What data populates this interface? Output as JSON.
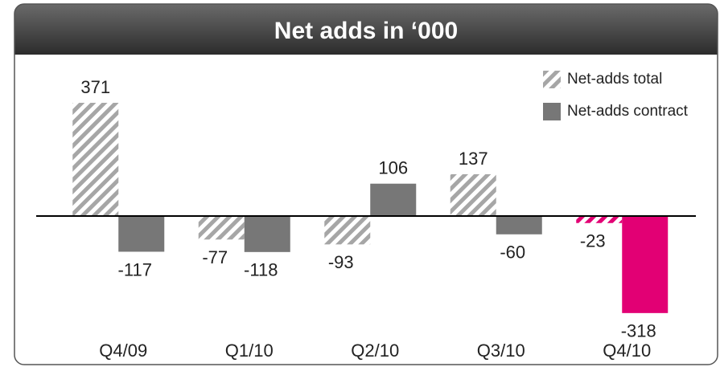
{
  "chart_data": {
    "type": "bar",
    "title": "Net adds in ‘000",
    "categories": [
      "Q4/09",
      "Q1/10",
      "Q2/10",
      "Q3/10",
      "Q4/10"
    ],
    "series": [
      {
        "name": "Net-adds total",
        "color": "#a6a6a6",
        "hatched": true,
        "colors": [
          "#a6a6a6",
          "#a6a6a6",
          "#a6a6a6",
          "#a6a6a6",
          "#e20074"
        ],
        "values": [
          371,
          -77,
          -93,
          137,
          -23
        ]
      },
      {
        "name": "Net-adds contract",
        "color": "#777777",
        "hatched": false,
        "colors": [
          "#777777",
          "#777777",
          "#777777",
          "#777777",
          "#e20074"
        ],
        "values": [
          -117,
          -118,
          106,
          -60,
          -318
        ]
      }
    ],
    "ylim": [
      -400,
      400
    ],
    "legend": "top-right"
  }
}
